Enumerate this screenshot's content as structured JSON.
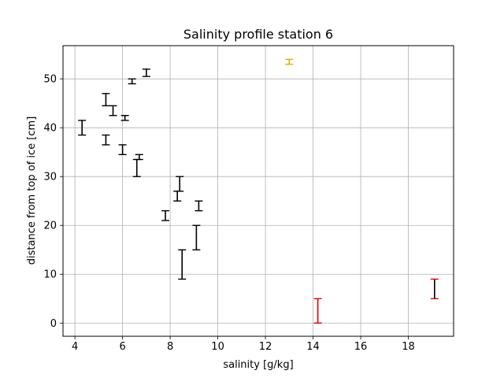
{
  "chart_data": {
    "type": "errorbar",
    "title": "Salinity profile station 6",
    "xlabel": "salinity [g/kg]",
    "ylabel": "distance from top of ice [cm]",
    "xlim": [
      3.5,
      19.9
    ],
    "ylim": [
      -2.7,
      56.8
    ],
    "xticks": [
      4,
      6,
      8,
      10,
      12,
      14,
      16,
      18
    ],
    "yticks": [
      0,
      10,
      20,
      30,
      40,
      50
    ],
    "grid": true,
    "colors": {
      "black": "#000000",
      "red": "#e00000",
      "orange": "#e6a800",
      "grid": "#b0b0b0"
    },
    "segments": [
      {
        "x": 13.0,
        "y_low": 53.0,
        "y_high": 54.0,
        "color": "orange"
      },
      {
        "x": 7.0,
        "y_low": 50.5,
        "y_high": 52.0,
        "color": "black"
      },
      {
        "x": 6.4,
        "y_low": 49.0,
        "y_high": 50.0,
        "color": "black"
      },
      {
        "x": 5.3,
        "y_low": 44.5,
        "y_high": 47.0,
        "color": "black"
      },
      {
        "x": 5.6,
        "y_low": 42.5,
        "y_high": 44.5,
        "color": "black"
      },
      {
        "x": 6.1,
        "y_low": 41.5,
        "y_high": 42.5,
        "color": "black"
      },
      {
        "x": 4.3,
        "y_low": 38.5,
        "y_high": 41.5,
        "color": "black"
      },
      {
        "x": 5.3,
        "y_low": 36.5,
        "y_high": 38.5,
        "color": "black"
      },
      {
        "x": 6.0,
        "y_low": 34.5,
        "y_high": 36.5,
        "color": "black"
      },
      {
        "x": 6.7,
        "y_low": 33.5,
        "y_high": 34.5,
        "color": "black"
      },
      {
        "x": 6.6,
        "y_low": 30.0,
        "y_high": 33.5,
        "color": "black"
      },
      {
        "x": 8.4,
        "y_low": 27.0,
        "y_high": 30.0,
        "color": "black"
      },
      {
        "x": 8.3,
        "y_low": 25.0,
        "y_high": 27.0,
        "color": "black"
      },
      {
        "x": 9.2,
        "y_low": 23.0,
        "y_high": 25.0,
        "color": "black"
      },
      {
        "x": 7.8,
        "y_low": 21.0,
        "y_high": 23.0,
        "color": "black"
      },
      {
        "x": 9.1,
        "y_low": 15.0,
        "y_high": 20.0,
        "color": "black"
      },
      {
        "x": 8.5,
        "y_low": 9.0,
        "y_high": 15.0,
        "color": "black"
      },
      {
        "x": 19.1,
        "y_low": 5.0,
        "y_high": 9.0,
        "color": "black",
        "cap_color": "red"
      },
      {
        "x": 14.2,
        "y_low": 0.0,
        "y_high": 5.0,
        "color": "red"
      }
    ]
  }
}
